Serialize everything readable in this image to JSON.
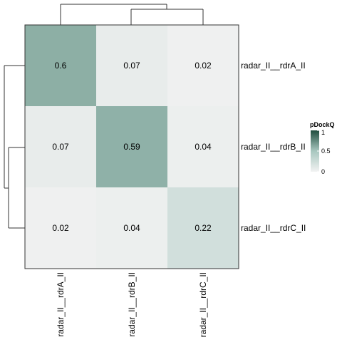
{
  "chart_data": {
    "type": "heatmap",
    "rows": [
      "radar_II__rdrA_II",
      "radar_II__rdrB_II",
      "radar_II__rdrC_II"
    ],
    "columns": [
      "radar_II__rdrA_II",
      "radar_II__rdrB_II",
      "radar_II__rdrC_II"
    ],
    "values": [
      [
        0.6,
        0.07,
        0.02
      ],
      [
        0.07,
        0.59,
        0.04
      ],
      [
        0.02,
        0.04,
        0.22
      ]
    ],
    "value_labels": [
      [
        "0.6",
        "0.07",
        "0.02"
      ],
      [
        "0.07",
        "0.59",
        "0.04"
      ],
      [
        "0.02",
        "0.04",
        "0.22"
      ]
    ],
    "color_scale": {
      "low_color": "#f2f2f2",
      "mid_color": "#a8c7bf",
      "high_color": "#1f4d3e",
      "range": [
        0,
        1
      ]
    },
    "legend": {
      "title": "pDockQ",
      "ticks": [
        "1",
        "0.5",
        "0"
      ],
      "tick_values": [
        1,
        0.5,
        0
      ],
      "placement": "right"
    },
    "row_dendrogram": "left",
    "column_dendrogram": "top"
  }
}
